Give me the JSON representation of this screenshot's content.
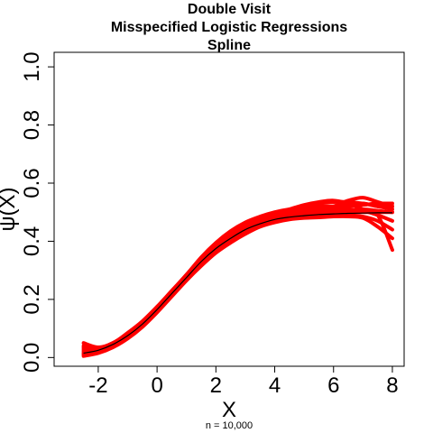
{
  "chart_data": {
    "type": "line",
    "title_lines": [
      "Double Visit",
      "Misspecified Logistic Regressions",
      "Spline"
    ],
    "xlabel": "X",
    "ylabel": "ψ(X)",
    "xlim": [
      -3.5,
      8.4
    ],
    "ylim": [
      -0.03,
      1.05
    ],
    "xticks": [
      -2,
      0,
      2,
      4,
      6,
      8
    ],
    "xtick_labels": [
      "-2",
      "0",
      "2",
      "4",
      "6",
      "8"
    ],
    "yticks": [
      0.0,
      0.2,
      0.4,
      0.6,
      0.8,
      1.0
    ],
    "ytick_labels": [
      "0.0",
      "0.2",
      "0.4",
      "0.6",
      "0.8",
      "1.0"
    ],
    "note": "n = 10,000",
    "grid": false,
    "colors": {
      "simulations": "#ff0000",
      "truth": "#000000"
    },
    "truth": {
      "x": [
        -2.5,
        -2,
        -1.5,
        -1,
        -0.5,
        0,
        0.5,
        1,
        1.5,
        2,
        2.5,
        3,
        3.5,
        4,
        4.5,
        5,
        5.5,
        6,
        6.5,
        7,
        7.5,
        8
      ],
      "y": [
        0.015,
        0.025,
        0.045,
        0.075,
        0.115,
        0.165,
        0.22,
        0.275,
        0.33,
        0.375,
        0.41,
        0.44,
        0.46,
        0.475,
        0.483,
        0.488,
        0.492,
        0.494,
        0.496,
        0.497,
        0.498,
        0.498
      ]
    },
    "simulations": {
      "x": [
        -2.5,
        -2,
        -1.5,
        -1,
        -0.5,
        0,
        0.5,
        1,
        1.5,
        2,
        2.5,
        3,
        3.5,
        4,
        4.5,
        5,
        5.5,
        6,
        6.5,
        7,
        7.5,
        8
      ],
      "series": [
        {
          "y": [
            0.03,
            0.03,
            0.05,
            0.08,
            0.12,
            0.17,
            0.225,
            0.28,
            0.335,
            0.38,
            0.415,
            0.445,
            0.465,
            0.48,
            0.49,
            0.495,
            0.5,
            0.5,
            0.5,
            0.5,
            0.5,
            0.5
          ]
        },
        {
          "y": [
            0.05,
            0.035,
            0.05,
            0.085,
            0.125,
            0.175,
            0.23,
            0.285,
            0.345,
            0.395,
            0.435,
            0.465,
            0.485,
            0.5,
            0.51,
            0.515,
            0.52,
            0.52,
            0.525,
            0.53,
            0.52,
            0.52
          ]
        },
        {
          "y": [
            0.01,
            0.02,
            0.04,
            0.07,
            0.11,
            0.16,
            0.215,
            0.27,
            0.32,
            0.365,
            0.4,
            0.43,
            0.455,
            0.47,
            0.48,
            0.485,
            0.49,
            0.49,
            0.49,
            0.485,
            0.47,
            0.44
          ]
        },
        {
          "y": [
            0.02,
            0.025,
            0.045,
            0.075,
            0.115,
            0.165,
            0.22,
            0.28,
            0.34,
            0.39,
            0.43,
            0.46,
            0.48,
            0.495,
            0.505,
            0.52,
            0.53,
            0.535,
            0.535,
            0.53,
            0.52,
            0.51
          ]
        },
        {
          "y": [
            0.005,
            0.015,
            0.035,
            0.065,
            0.105,
            0.155,
            0.21,
            0.265,
            0.315,
            0.36,
            0.395,
            0.425,
            0.45,
            0.465,
            0.475,
            0.48,
            0.482,
            0.485,
            0.485,
            0.48,
            0.45,
            0.41
          ]
        },
        {
          "y": [
            0.04,
            0.03,
            0.05,
            0.08,
            0.12,
            0.17,
            0.225,
            0.285,
            0.34,
            0.385,
            0.42,
            0.455,
            0.48,
            0.495,
            0.51,
            0.525,
            0.535,
            0.54,
            0.53,
            0.51,
            0.49,
            0.37
          ]
        },
        {
          "y": [
            0.015,
            0.022,
            0.042,
            0.072,
            0.112,
            0.162,
            0.218,
            0.275,
            0.33,
            0.378,
            0.413,
            0.442,
            0.462,
            0.478,
            0.49,
            0.5,
            0.505,
            0.51,
            0.52,
            0.525,
            0.53,
            0.53
          ]
        },
        {
          "y": [
            0.025,
            0.028,
            0.048,
            0.078,
            0.118,
            0.168,
            0.222,
            0.278,
            0.332,
            0.376,
            0.408,
            0.438,
            0.458,
            0.473,
            0.482,
            0.49,
            0.495,
            0.5,
            0.505,
            0.51,
            0.505,
            0.5
          ]
        },
        {
          "y": [
            0.012,
            0.02,
            0.04,
            0.07,
            0.11,
            0.16,
            0.215,
            0.27,
            0.325,
            0.372,
            0.408,
            0.44,
            0.465,
            0.485,
            0.5,
            0.51,
            0.515,
            0.515,
            0.51,
            0.505,
            0.49,
            0.47
          ]
        },
        {
          "y": [
            0.035,
            0.03,
            0.048,
            0.078,
            0.118,
            0.168,
            0.225,
            0.283,
            0.338,
            0.385,
            0.42,
            0.45,
            0.47,
            0.487,
            0.498,
            0.505,
            0.51,
            0.52,
            0.54,
            0.55,
            0.535,
            0.52
          ]
        }
      ]
    }
  }
}
